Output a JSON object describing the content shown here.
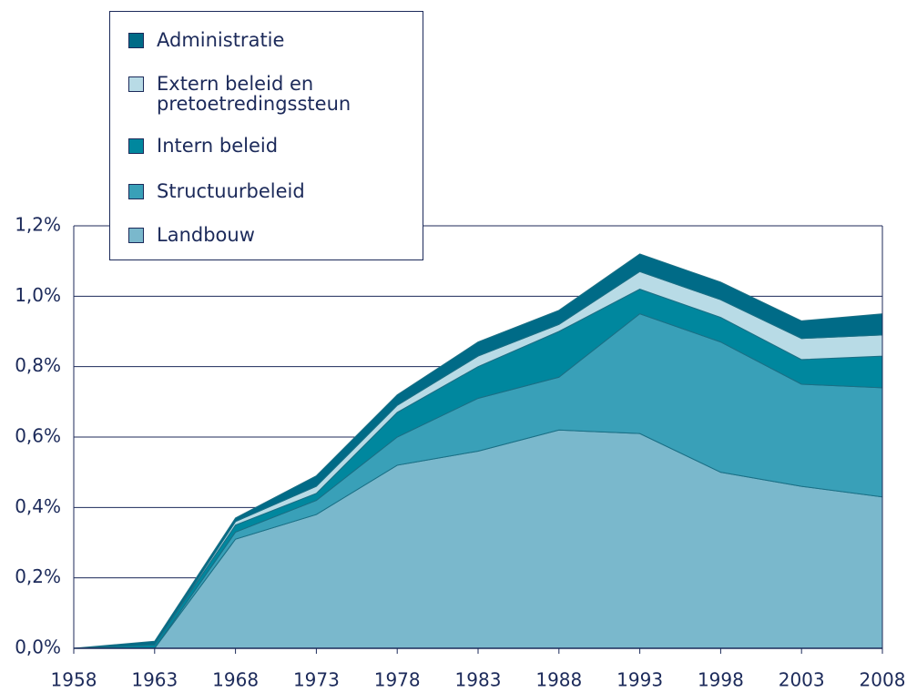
{
  "chart_data": {
    "type": "stacked_area",
    "x": [
      1958,
      1963,
      1968,
      1973,
      1978,
      1983,
      1988,
      1993,
      1998,
      2003,
      2008
    ],
    "xlim": [
      1958,
      2008
    ],
    "ylim": [
      0,
      1.2
    ],
    "yticks": [
      {
        "value": 0,
        "label": "0,0%"
      },
      {
        "value": 0.2,
        "label": "0,2%"
      },
      {
        "value": 0.4,
        "label": "0,4%"
      },
      {
        "value": 0.6,
        "label": "0,6%"
      },
      {
        "value": 0.8,
        "label": "0,8%"
      },
      {
        "value": 1.0,
        "label": "1,0%"
      },
      {
        "value": 1.2,
        "label": "1,2%"
      }
    ],
    "grid": true,
    "legend": "top-left",
    "series": [
      {
        "name": "Landbouw",
        "color": "#7ab8cc",
        "values": [
          0,
          0,
          0.31,
          0.38,
          0.52,
          0.56,
          0.62,
          0.61,
          0.5,
          0.46,
          0.43
        ]
      },
      {
        "name": "Structuurbeleid",
        "color": "#39a0b8",
        "values": [
          0,
          0,
          0.02,
          0.04,
          0.08,
          0.15,
          0.15,
          0.34,
          0.37,
          0.29,
          0.31
        ]
      },
      {
        "name": "Intern beleid",
        "color": "#00879e",
        "values": [
          0,
          0.01,
          0.02,
          0.02,
          0.07,
          0.09,
          0.13,
          0.07,
          0.07,
          0.07,
          0.09
        ]
      },
      {
        "name": "Extern beleid en pretoetredingssteun",
        "color": "#b8dbe6",
        "values": [
          0,
          0,
          0.01,
          0.02,
          0.02,
          0.03,
          0.02,
          0.05,
          0.05,
          0.06,
          0.06
        ]
      },
      {
        "name": "Administratie",
        "color": "#006b87",
        "values": [
          0,
          0.01,
          0.01,
          0.03,
          0.03,
          0.04,
          0.04,
          0.05,
          0.05,
          0.05,
          0.06
        ]
      }
    ]
  }
}
